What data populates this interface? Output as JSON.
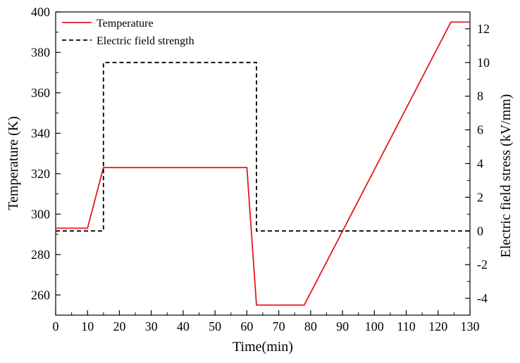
{
  "chart_data": {
    "type": "line",
    "title": "",
    "xlabel": "Time(min)",
    "ylabel_left": "Temperature (K)",
    "ylabel_right": "Electric field stress (kV/mm)",
    "xlim": [
      0,
      130
    ],
    "ylim_left": [
      250,
      400
    ],
    "ylim_right": [
      -5,
      13
    ],
    "x_ticks": [
      0,
      10,
      20,
      30,
      40,
      50,
      60,
      70,
      80,
      90,
      100,
      110,
      120,
      130
    ],
    "y_left_ticks": [
      260,
      280,
      300,
      320,
      340,
      360,
      380,
      400
    ],
    "y_right_ticks": [
      -4,
      -2,
      0,
      2,
      4,
      6,
      8,
      10,
      12
    ],
    "grid": false,
    "legend_position": "top-left",
    "series": [
      {
        "name": "Temperature",
        "axis": "left",
        "color": "#e31a1c",
        "style": "solid",
        "x": [
          0,
          10,
          15,
          60,
          63,
          78,
          124,
          130
        ],
        "y": [
          293,
          293,
          323,
          323,
          255,
          255,
          395,
          395
        ]
      },
      {
        "name": "Electric field strength",
        "axis": "right",
        "color": "#000000",
        "style": "dashed",
        "x": [
          0,
          15,
          15,
          63,
          63,
          130
        ],
        "y": [
          0,
          0,
          10,
          10,
          0,
          0
        ]
      }
    ]
  }
}
